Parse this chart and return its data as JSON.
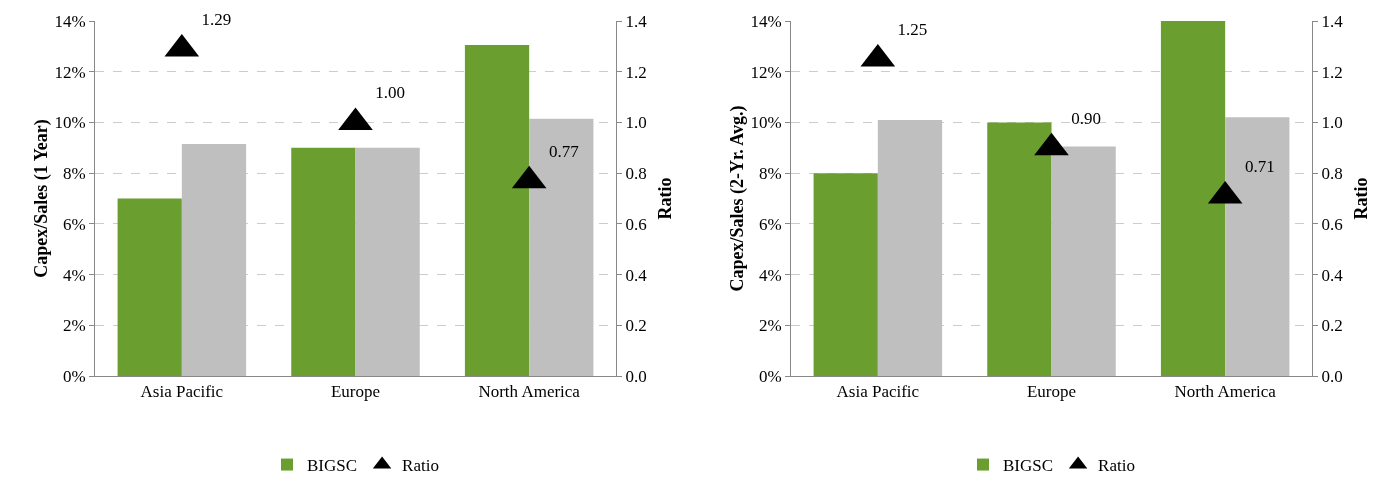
{
  "chart_data": [
    {
      "type": "bar",
      "ylabel": "Capex/Sales (1 Year)",
      "y2label": "Ratio",
      "categories": [
        "Asia Pacific",
        "Europe",
        "North America"
      ],
      "series": [
        {
          "name": "BIGSC",
          "color": "#6a9f2f",
          "values": [
            7.0,
            9.0,
            13.05
          ]
        },
        {
          "color": "#bfbfbf",
          "values": [
            9.15,
            9.0,
            10.15
          ]
        },
        {
          "name": "Ratio",
          "type": "scatter",
          "marker": "triangle",
          "axis": "y2",
          "color": "#000000",
          "values": [
            1.29,
            1.0,
            0.77
          ],
          "value_labels": [
            "1.29",
            "1.00",
            "0.77"
          ]
        }
      ],
      "ylim": [
        0,
        14
      ],
      "yticks": [
        {
          "value": 0,
          "label": "0%"
        },
        {
          "value": 2,
          "label": "2%"
        },
        {
          "value": 4,
          "label": "4%"
        },
        {
          "value": 6,
          "label": "6%"
        },
        {
          "value": 8,
          "label": "8%"
        },
        {
          "value": 10,
          "label": "10%"
        },
        {
          "value": 12,
          "label": "12%"
        },
        {
          "value": 14,
          "label": "14%"
        }
      ],
      "y2lim": [
        0,
        1.4
      ],
      "y2ticks": [
        {
          "value": 0,
          "label": "0.0"
        },
        {
          "value": 0.2,
          "label": "0.2"
        },
        {
          "value": 0.4,
          "label": "0.4"
        },
        {
          "value": 0.6,
          "label": "0.6"
        },
        {
          "value": 0.8,
          "label": "0.8"
        },
        {
          "value": 1,
          "label": "1.0"
        },
        {
          "value": 1.2,
          "label": "1.2"
        },
        {
          "value": 1.4,
          "label": "1.4"
        }
      ],
      "grid": "y",
      "legend": "bottom"
    },
    {
      "type": "bar",
      "ylabel": "Capex/Sales (2-Yr. Avg.)",
      "y2label": "Ratio",
      "categories": [
        "Asia Pacific",
        "Europe",
        "North America"
      ],
      "series": [
        {
          "name": "BIGSC",
          "color": "#6a9f2f",
          "values": [
            8.0,
            10.0,
            14.0
          ]
        },
        {
          "color": "#bfbfbf",
          "values": [
            10.1,
            9.05,
            10.2
          ]
        },
        {
          "name": "Ratio",
          "type": "scatter",
          "marker": "triangle",
          "axis": "y2",
          "color": "#000000",
          "values": [
            1.25,
            0.9,
            0.71
          ],
          "value_labels": [
            "1.25",
            "0.90",
            "0.71"
          ]
        }
      ],
      "ylim": [
        0,
        14
      ],
      "yticks": [
        {
          "value": 0,
          "label": "0%"
        },
        {
          "value": 2,
          "label": "2%"
        },
        {
          "value": 4,
          "label": "4%"
        },
        {
          "value": 6,
          "label": "6%"
        },
        {
          "value": 8,
          "label": "8%"
        },
        {
          "value": 10,
          "label": "10%"
        },
        {
          "value": 12,
          "label": "12%"
        },
        {
          "value": 14,
          "label": "14%"
        }
      ],
      "y2lim": [
        0,
        1.4
      ],
      "y2ticks": [
        {
          "value": 0,
          "label": "0.0"
        },
        {
          "value": 0.2,
          "label": "0.2"
        },
        {
          "value": 0.4,
          "label": "0.4"
        },
        {
          "value": 0.6,
          "label": "0.6"
        },
        {
          "value": 0.8,
          "label": "0.8"
        },
        {
          "value": 1,
          "label": "1.0"
        },
        {
          "value": 1.2,
          "label": "1.2"
        },
        {
          "value": 1.4,
          "label": "1.4"
        }
      ],
      "grid": "y",
      "legend": "bottom"
    }
  ]
}
